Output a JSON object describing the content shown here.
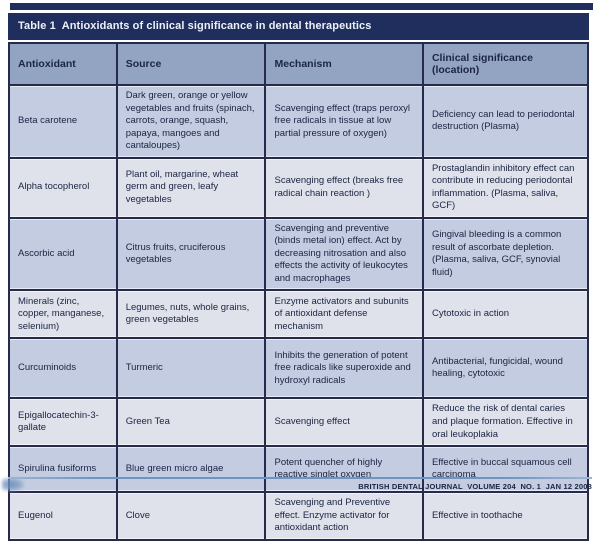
{
  "colors": {
    "navy": "#1f2e5c",
    "header_bg": "#92a4c2",
    "row_dark": "#c3cce0",
    "row_light": "#dfe2eb",
    "grid": "#262b4c",
    "footer_line": "#6f94bf"
  },
  "table": {
    "title": "Table 1  Antioxidants of clinical significance in dental therapeutics",
    "columns": [
      "Antioxidant",
      "Source",
      "Mechanism",
      "Clinical significance (location)"
    ],
    "rows": [
      {
        "antioxidant": "Beta carotene",
        "source": "Dark green, orange or yellow vegetables and fruits (spinach, carrots, orange, squash, papaya, mangoes and cantaloupes)",
        "mechanism": "Scavenging effect (traps peroxyl free radicals in tissue at low partial pressure of oxygen)",
        "clinical": "Deficiency can lead to periodontal destruction (Plasma)"
      },
      {
        "antioxidant": "Alpha tocopherol",
        "source": "Plant oil, margarine, wheat germ and green, leafy vegetables",
        "mechanism": "Scavenging effect (breaks free radical chain reaction )",
        "clinical": "Prostaglandin inhibitory effect can contribute in reducing periodontal inflammation. (Plasma, saliva, GCF)"
      },
      {
        "antioxidant": "Ascorbic acid",
        "source": "Citrus fruits, cruciferous vegetables",
        "mechanism": "Scavenging and preventive (binds metal ion) effect. Act by decreasing nitrosation and also effects the activity of leukocytes and macrophages",
        "clinical": "Gingival bleeding is a common result of ascorbate depletion. (Plasma, saliva, GCF, synovial fluid)"
      },
      {
        "antioxidant": "Minerals (zinc, copper, manganese, selenium)",
        "source": "Legumes, nuts, whole grains, green vegetables",
        "mechanism": "Enzyme activators and subunits of antioxidant defense mechanism",
        "clinical": "Cytotoxic in action"
      },
      {
        "antioxidant": "Curcuminoids",
        "source": "Turmeric",
        "mechanism": "Inhibits the generation of potent free radicals like superoxide and hydroxyl radicals",
        "clinical": "Antibacterial, fungicidal, wound healing, cytotoxic"
      },
      {
        "antioxidant": "Epigallocatechin-3-gallate",
        "source": "Green Tea",
        "mechanism": "Scavenging effect",
        "clinical": "Reduce the risk of dental caries and plaque formation. Effective in oral leukoplakia"
      },
      {
        "antioxidant": "Spirulina fusiforms",
        "source": "Blue green micro algae",
        "mechanism": "Potent quencher of highly reactive singlet oxygen",
        "clinical": "Effective in buccal squamous cell carcinoma"
      },
      {
        "antioxidant": "Eugenol",
        "source": "Clove",
        "mechanism": "Scavenging and Preventive effect. Enzyme activator for antioxidant action",
        "clinical": "Effective in toothache"
      }
    ]
  },
  "footer": {
    "citation": "BRITISH DENTAL JOURNAL  VOLUME 204  NO. 1  JAN 12 2008"
  }
}
